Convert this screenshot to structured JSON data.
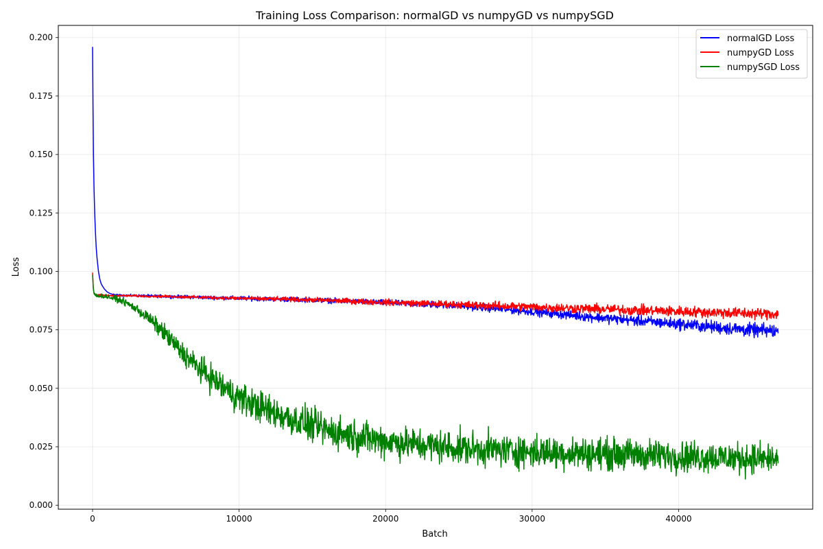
{
  "chart_data": {
    "type": "line",
    "title": "Training Loss Comparison: normalGD vs numpyGD vs numpySGD",
    "xlabel": "Batch",
    "ylabel": "Loss",
    "xlim": [
      -2340,
      49150
    ],
    "ylim": [
      -0.0017,
      0.2052
    ],
    "xticks": [
      0,
      10000,
      20000,
      30000,
      40000
    ],
    "yticks": [
      0.0,
      0.025,
      0.05,
      0.075,
      0.1,
      0.125,
      0.15,
      0.175,
      0.2
    ],
    "ytick_labels": [
      "0.000",
      "0.025",
      "0.050",
      "0.075",
      "0.100",
      "0.125",
      "0.150",
      "0.175",
      "0.200"
    ],
    "grid": true,
    "legend_position": "top-right",
    "series": [
      {
        "name": "normalGD Loss",
        "color": "#0000ff",
        "x": [
          0,
          30,
          60,
          100,
          150,
          200,
          250,
          300,
          400,
          500,
          600,
          800,
          1000,
          1200,
          1500,
          2000,
          3000,
          5000,
          8000,
          10000,
          15000,
          20000,
          25000,
          30000,
          35000,
          40000,
          45000,
          46800
        ],
        "y": [
          0.196,
          0.17,
          0.15,
          0.135,
          0.124,
          0.116,
          0.11,
          0.106,
          0.1,
          0.0965,
          0.0945,
          0.0925,
          0.0912,
          0.0905,
          0.09,
          0.0898,
          0.0896,
          0.0893,
          0.0888,
          0.0885,
          0.0878,
          0.0866,
          0.0853,
          0.0828,
          0.08,
          0.0775,
          0.0748,
          0.0745
        ],
        "noise": [
          0,
          0,
          0,
          0,
          0,
          0,
          0,
          0,
          0,
          0,
          0,
          0,
          0,
          0,
          0.0002,
          0.0003,
          0.0004,
          0.0005,
          0.0006,
          0.0007,
          0.0008,
          0.0009,
          0.0011,
          0.0013,
          0.0016,
          0.0019,
          0.0022,
          0.0023
        ]
      },
      {
        "name": "numpyGD Loss",
        "color": "#ff0000",
        "x": [
          0,
          50,
          100,
          200,
          500,
          1000,
          2000,
          5000,
          10000,
          15000,
          20000,
          25000,
          30000,
          35000,
          40000,
          45000,
          46800
        ],
        "y": [
          0.0995,
          0.093,
          0.0905,
          0.0899,
          0.0898,
          0.0897,
          0.0896,
          0.0893,
          0.0885,
          0.0878,
          0.0868,
          0.0858,
          0.0848,
          0.0838,
          0.0829,
          0.082,
          0.0818
        ],
        "noise": [
          0,
          0,
          0,
          0.0002,
          0.0003,
          0.0003,
          0.0003,
          0.0004,
          0.0006,
          0.0008,
          0.001,
          0.0012,
          0.0014,
          0.0016,
          0.0017,
          0.0018,
          0.0018
        ]
      },
      {
        "name": "numpySGD Loss",
        "color": "#008000",
        "x": [
          0,
          50,
          100,
          200,
          500,
          1000,
          2000,
          3000,
          4000,
          5000,
          6000,
          7000,
          8000,
          9000,
          10000,
          12000,
          14000,
          16000,
          18000,
          20000,
          22000,
          25000,
          28000,
          30000,
          35000,
          40000,
          45000,
          46800
        ],
        "y": [
          0.0985,
          0.093,
          0.0905,
          0.0898,
          0.0895,
          0.0892,
          0.0875,
          0.084,
          0.079,
          0.073,
          0.066,
          0.06,
          0.055,
          0.05,
          0.046,
          0.0405,
          0.036,
          0.032,
          0.0295,
          0.0275,
          0.026,
          0.0245,
          0.0235,
          0.0228,
          0.022,
          0.021,
          0.02,
          0.0198
        ],
        "noise": [
          0,
          0,
          0.0003,
          0.0005,
          0.0006,
          0.0008,
          0.001,
          0.0015,
          0.0022,
          0.003,
          0.0035,
          0.004,
          0.0045,
          0.0048,
          0.005,
          0.0052,
          0.0053,
          0.0054,
          0.0054,
          0.0054,
          0.0053,
          0.0053,
          0.0052,
          0.0052,
          0.0051,
          0.005,
          0.005,
          0.005
        ]
      }
    ]
  }
}
